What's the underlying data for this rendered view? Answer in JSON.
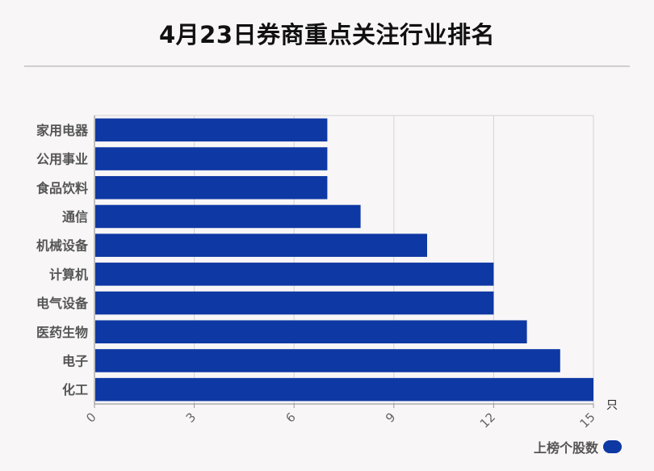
{
  "chart_data": {
    "type": "bar",
    "orientation": "horizontal",
    "title": "4月23日券商重点关注行业排名",
    "categories": [
      "家用电器",
      "公用事业",
      "食品饮料",
      "通信",
      "机械设备",
      "计算机",
      "电气设备",
      "医药生物",
      "电子",
      "化工"
    ],
    "series": [
      {
        "name": "上榜个股数",
        "values": [
          7,
          7,
          7,
          8,
          10,
          12,
          12,
          13,
          14,
          15
        ]
      }
    ],
    "x_ticks": [
      "0",
      "3",
      "6",
      "9",
      "12",
      "15"
    ],
    "xlim": [
      0,
      15
    ],
    "unit": "只",
    "grid": true,
    "legend_position": "bottom-right",
    "bar_color": "#0e38a3"
  }
}
